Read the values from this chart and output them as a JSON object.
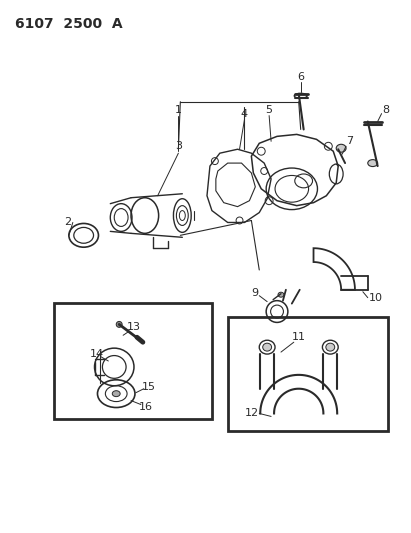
{
  "title": "6107  2500  A",
  "bg": "#ffffff",
  "lc": "#2a2a2a",
  "figsize": [
    4.11,
    5.33
  ],
  "dpi": 100
}
